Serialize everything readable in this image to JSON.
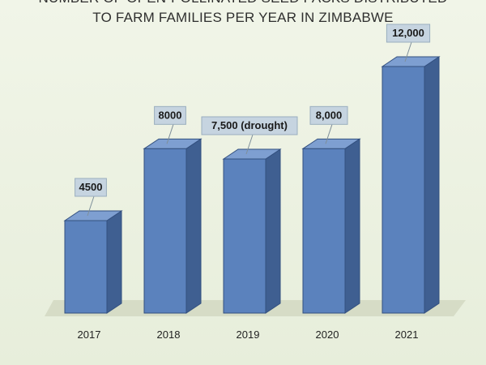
{
  "chart": {
    "title_line1": "NUMBER OF OPEN-POLLINATED SEED PACKS DISTRIBUTED",
    "title_line2": "TO FARM FAMILIES PER YEAR IN ZIMBABWE"
  },
  "chart_data": {
    "type": "bar",
    "title": "NUMBER OF OPEN-POLLINATED SEED PACKS DISTRIBUTED TO FARM FAMILIES PER YEAR IN ZIMBABWE",
    "categories": [
      "2017",
      "2018",
      "2019",
      "2020",
      "2021"
    ],
    "values": [
      4500,
      8000,
      7500,
      8000,
      12000
    ],
    "data_labels": [
      "4500",
      "8000",
      "7,500 (drought)",
      "8,000",
      "12,000"
    ],
    "xlabel": "",
    "ylabel": "",
    "ylim": [
      0,
      12000
    ],
    "grid": false,
    "legend": "none",
    "style": "3d-column",
    "colors": {
      "bar_front": "#5b82bd",
      "bar_side": "#3f5f91",
      "bar_top": "#7e9fd1",
      "bar_edge": "#33507f",
      "floor": "#d6dcc6",
      "label_box": "#c6d4e0",
      "label_border": "#9aaebf"
    }
  }
}
